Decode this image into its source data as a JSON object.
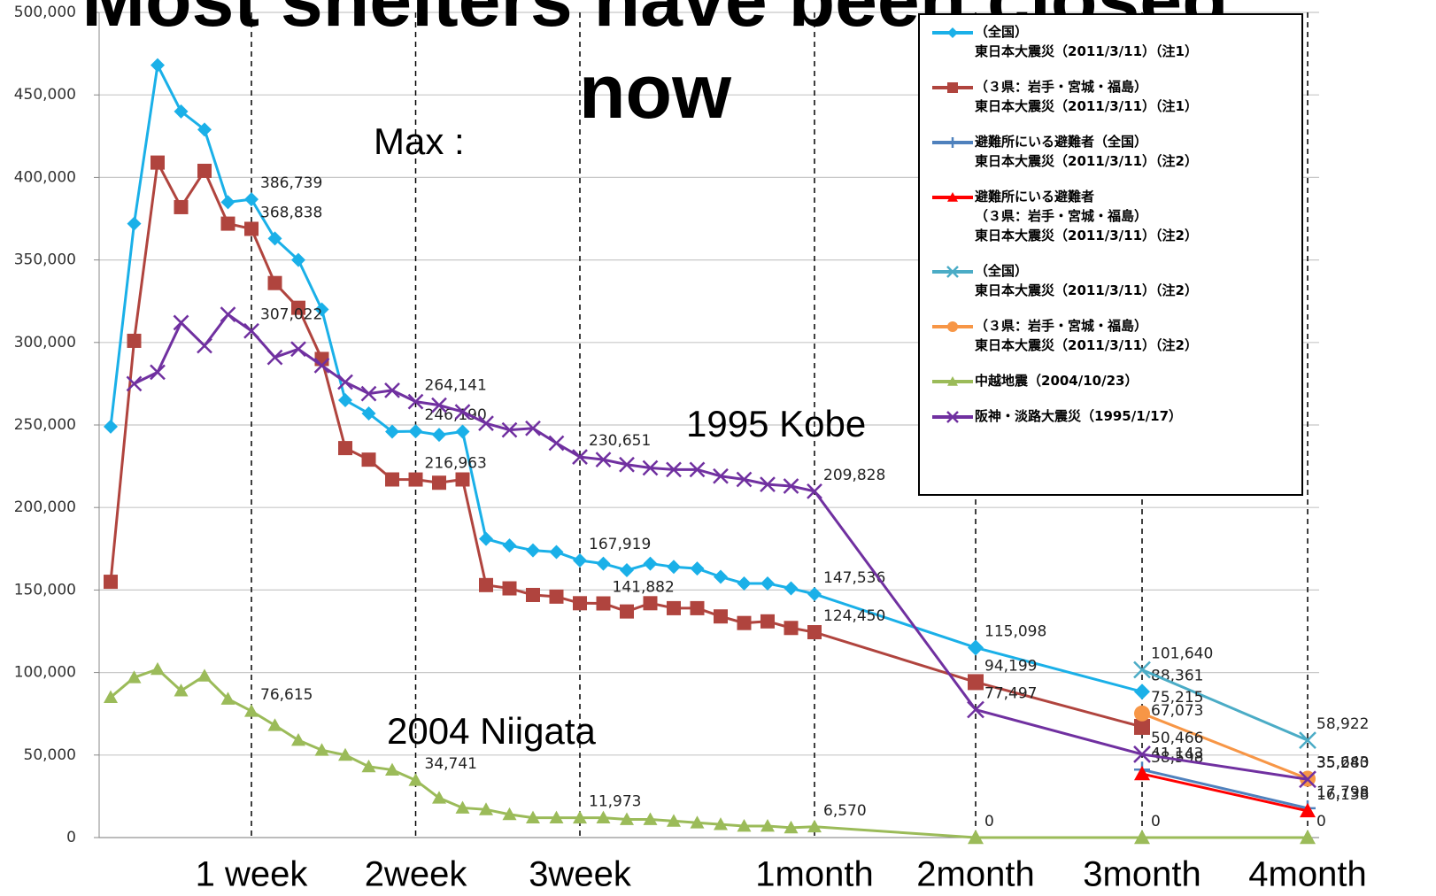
{
  "chart_data": {
    "type": "line",
    "title": "Most shelters have been closed now",
    "annotations": [
      "Max :",
      "1995 Kobe",
      "2004 Niigata"
    ],
    "categories": [
      null,
      null,
      null,
      null,
      null,
      null,
      "1 week",
      null,
      null,
      null,
      null,
      null,
      null,
      "2week",
      null,
      null,
      null,
      null,
      null,
      null,
      "3week",
      null,
      null,
      null,
      null,
      null,
      null,
      null,
      null,
      null,
      "1month",
      "2month",
      "3month",
      "4month"
    ],
    "ylim": [
      0,
      500000
    ],
    "yticks": [
      0,
      {
        "value": 50000,
        "label": "50,000"
      },
      {
        "value": 100000,
        "label": "100,000"
      },
      {
        "value": 150000,
        "label": "150,000"
      },
      {
        "value": 200000,
        "label": "200,000"
      },
      {
        "value": 250000,
        "label": "250,000"
      },
      {
        "value": 300000,
        "label": "300,000"
      },
      {
        "value": 350000,
        "label": "350,000"
      },
      {
        "value": 400000,
        "label": "400,000"
      },
      {
        "value": 450000,
        "label": "450,000"
      },
      {
        "value": 500000,
        "label": "500,000"
      }
    ],
    "grid": true,
    "legend": "upper right",
    "series": [
      {
        "name": "（全国）\n東日本大震災（2011/3/11）（注1）",
        "color": "#1ab0e8",
        "marker": "diamond",
        "values": [
          249000,
          372000,
          468000,
          440000,
          429000,
          385000,
          386739,
          363000,
          350000,
          320000,
          265000,
          257000,
          246000,
          246190,
          244000,
          246000,
          181000,
          177000,
          174000,
          173000,
          167919,
          166000,
          162000,
          166000,
          164000,
          163000,
          158000,
          154000,
          154000,
          151000,
          147536,
          115098,
          88361,
          null
        ],
        "value_labels": [
          null,
          null,
          null,
          null,
          null,
          null,
          "386,739",
          null,
          null,
          null,
          null,
          null,
          null,
          "246,190",
          null,
          null,
          null,
          null,
          null,
          null,
          "167,919",
          null,
          null,
          null,
          null,
          null,
          null,
          null,
          null,
          null,
          "147,536",
          "115,098",
          "88,361",
          null
        ]
      },
      {
        "name": "（３県：岩手・宮城・福島）\n東日本大震災（2011/3/11）（注1）",
        "color": "#b0443e",
        "marker": "square",
        "values": [
          155000,
          301000,
          409000,
          382000,
          404000,
          372000,
          368838,
          336000,
          321000,
          290000,
          236000,
          229000,
          217000,
          216963,
          215000,
          217000,
          153000,
          151000,
          147000,
          146000,
          142000,
          141882,
          137000,
          142000,
          139000,
          139000,
          134000,
          130000,
          131000,
          127000,
          124450,
          94199,
          67073,
          null
        ],
        "value_labels": [
          null,
          null,
          null,
          null,
          null,
          null,
          "368,838",
          null,
          null,
          null,
          null,
          null,
          null,
          "216,963",
          null,
          null,
          null,
          null,
          null,
          null,
          null,
          "141,882",
          null,
          null,
          null,
          null,
          null,
          null,
          null,
          null,
          "124,450",
          "94,199",
          "67,073",
          null
        ]
      },
      {
        "name": "避難所にいる避難者（全国）\n東日本大震災（2011/3/11）（注2）",
        "color": "#4f81bd",
        "marker": "plus",
        "values": [
          null,
          null,
          null,
          null,
          null,
          null,
          null,
          null,
          null,
          null,
          null,
          null,
          null,
          null,
          null,
          null,
          null,
          null,
          null,
          null,
          null,
          null,
          null,
          null,
          null,
          null,
          null,
          null,
          null,
          null,
          null,
          null,
          41143,
          17798
        ],
        "value_labels": [
          null,
          null,
          null,
          null,
          null,
          null,
          null,
          null,
          null,
          null,
          null,
          null,
          null,
          null,
          null,
          null,
          null,
          null,
          null,
          null,
          null,
          null,
          null,
          null,
          null,
          null,
          null,
          null,
          null,
          null,
          null,
          null,
          "41,143",
          "17,798"
        ]
      },
      {
        "name": "避難所にいる避難者\n（３県：岩手・宮城・福島）\n東日本大震災（2011/3/11）（注2）",
        "color": "#ff0000",
        "marker": "triangle",
        "values": [
          null,
          null,
          null,
          null,
          null,
          null,
          null,
          null,
          null,
          null,
          null,
          null,
          null,
          null,
          null,
          null,
          null,
          null,
          null,
          null,
          null,
          null,
          null,
          null,
          null,
          null,
          null,
          null,
          null,
          null,
          null,
          null,
          38598,
          16138
        ],
        "value_labels": [
          null,
          null,
          null,
          null,
          null,
          null,
          null,
          null,
          null,
          null,
          null,
          null,
          null,
          null,
          null,
          null,
          null,
          null,
          null,
          null,
          null,
          null,
          null,
          null,
          null,
          null,
          null,
          null,
          null,
          null,
          null,
          null,
          "38,598",
          "16,138"
        ]
      },
      {
        "name": "（全国）\n東日本大震災（2011/3/11）（注2）",
        "color": "#4bacc6",
        "marker": "x",
        "values": [
          null,
          null,
          null,
          null,
          null,
          null,
          null,
          null,
          null,
          null,
          null,
          null,
          null,
          null,
          null,
          null,
          null,
          null,
          null,
          null,
          null,
          null,
          null,
          null,
          null,
          null,
          null,
          null,
          null,
          null,
          null,
          null,
          101640,
          58922
        ],
        "value_labels": [
          null,
          null,
          null,
          null,
          null,
          null,
          null,
          null,
          null,
          null,
          null,
          null,
          null,
          null,
          null,
          null,
          null,
          null,
          null,
          null,
          null,
          null,
          null,
          null,
          null,
          null,
          null,
          null,
          null,
          null,
          null,
          null,
          "101,640",
          "58,922"
        ]
      },
      {
        "name": "（３県：岩手・宮城・福島）\n東日本大震災（2011/3/11）（注2）",
        "color": "#f79646",
        "marker": "circle",
        "values": [
          null,
          null,
          null,
          null,
          null,
          null,
          null,
          null,
          null,
          null,
          null,
          null,
          null,
          null,
          null,
          null,
          null,
          null,
          null,
          null,
          null,
          null,
          null,
          null,
          null,
          null,
          null,
          null,
          null,
          null,
          null,
          null,
          75215,
          35643
        ],
        "value_labels": [
          null,
          null,
          null,
          null,
          null,
          null,
          null,
          null,
          null,
          null,
          null,
          null,
          null,
          null,
          null,
          null,
          null,
          null,
          null,
          null,
          null,
          null,
          null,
          null,
          null,
          null,
          null,
          null,
          null,
          null,
          null,
          null,
          "75,215",
          "35,643"
        ]
      },
      {
        "name": "中越地震（2004/10/23）",
        "color": "#9bbb59",
        "marker": "triangle",
        "values": [
          85000,
          97000,
          102000,
          89000,
          98000,
          84000,
          76615,
          68000,
          59000,
          53000,
          50000,
          43000,
          41000,
          34741,
          24000,
          18000,
          17000,
          14000,
          12000,
          12000,
          11973,
          12000,
          11000,
          11000,
          10000,
          9000,
          8000,
          7000,
          7000,
          6000,
          6570,
          0,
          0,
          0
        ],
        "value_labels": [
          null,
          null,
          null,
          null,
          null,
          null,
          "76,615",
          null,
          null,
          null,
          null,
          null,
          null,
          "34,741",
          null,
          null,
          null,
          null,
          null,
          null,
          "11,973",
          null,
          null,
          null,
          null,
          null,
          null,
          null,
          null,
          null,
          "6,570",
          "0",
          "0",
          "0"
        ]
      },
      {
        "name": "阪神・淡路大震災（1995/1/17）",
        "color": "#7030a0",
        "marker": "x",
        "values": [
          null,
          275000,
          282000,
          312000,
          298000,
          317000,
          307022,
          291000,
          296000,
          286000,
          276000,
          269000,
          271000,
          264141,
          262000,
          258000,
          251000,
          247000,
          248000,
          239000,
          230651,
          229000,
          226000,
          224000,
          223000,
          223000,
          219000,
          217000,
          214000,
          213000,
          209828,
          77497,
          50466,
          35280
        ],
        "value_labels": [
          null,
          null,
          null,
          null,
          null,
          null,
          "307,022",
          null,
          null,
          null,
          null,
          null,
          null,
          "264,141",
          null,
          null,
          null,
          null,
          null,
          null,
          "230,651",
          null,
          null,
          null,
          null,
          null,
          null,
          null,
          null,
          null,
          "209,828",
          "77,497",
          "50,466",
          "35,280"
        ]
      }
    ]
  }
}
